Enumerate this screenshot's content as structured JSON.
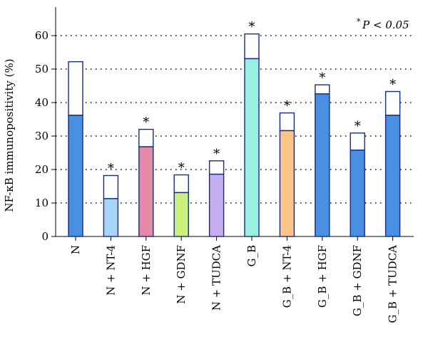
{
  "chart_data": {
    "type": "bar",
    "ylabel": "NF-κB immunopositivity (%)",
    "ylim": [
      0,
      65
    ],
    "yticks": [
      0,
      10,
      20,
      30,
      40,
      50,
      60
    ],
    "grid": true,
    "annotation_star": "*",
    "annotation_text": "P < 0.05",
    "categories": [
      "N",
      "N + NT-4",
      "N + HGF",
      "N + GDNF",
      "N + TUDCA",
      "G_B",
      "G_B + NT-4",
      "G_B + HGF",
      "G_B + GDNF",
      "G_B + TUDCA"
    ],
    "series": [
      {
        "values": [
          36.2,
          11.3,
          26.8,
          13.1,
          18.6,
          53.1,
          31.6,
          42.6,
          25.8,
          36.2
        ]
      },
      {
        "values": [
          52.2,
          18.2,
          32.0,
          18.4,
          22.6,
          60.5,
          36.9,
          45.3,
          30.9,
          43.3
        ]
      }
    ],
    "significant": [
      false,
      true,
      true,
      true,
      true,
      true,
      true,
      true,
      true,
      true
    ],
    "fill_colors": [
      "#4a90e2",
      "#a8d4f5",
      "#e48aa6",
      "#c8f07a",
      "#c4aef0",
      "#9af0e0",
      "#ffc48a",
      "#4a90e2",
      "#4a90e2",
      "#4a90e2"
    ],
    "outline_color": "#1a2a80"
  }
}
